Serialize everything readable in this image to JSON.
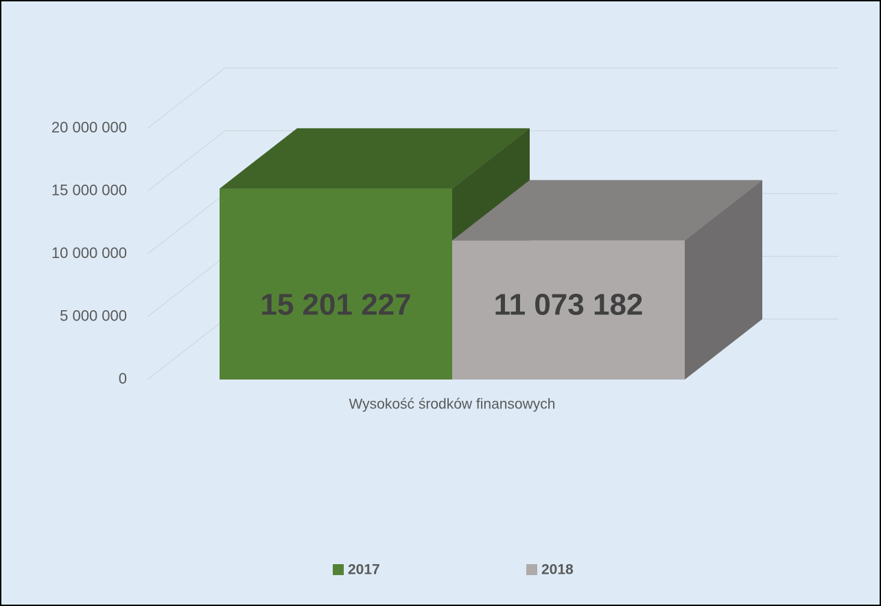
{
  "chart_data": {
    "type": "bar3d",
    "categories": [
      "Wysokość środków finansowych"
    ],
    "series": [
      {
        "name": "2017",
        "color": "#548235",
        "values": [
          15201227
        ],
        "value_labels": [
          "15 201 227"
        ]
      },
      {
        "name": "2018",
        "color": "#aeaaaa",
        "values": [
          11073182
        ],
        "value_labels": [
          "11 073 182"
        ]
      }
    ],
    "ylim": [
      0,
      20000000
    ],
    "yticks": [
      {
        "value": 0,
        "label": "0"
      },
      {
        "value": 5000000,
        "label": "5 000 000"
      },
      {
        "value": 10000000,
        "label": "10 000 000"
      },
      {
        "value": 15000000,
        "label": "15 000 000"
      },
      {
        "value": 20000000,
        "label": "20 000 000"
      }
    ],
    "grid": true
  }
}
